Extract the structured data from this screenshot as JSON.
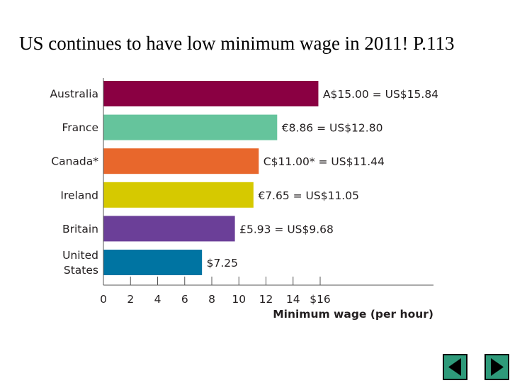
{
  "slide": {
    "title": "US continues to have low minimum wage in 2011! P.113"
  },
  "nav": {
    "prev_icon": "triangle-left-icon",
    "next_icon": "triangle-right-icon",
    "button_color": "#2e9a7a"
  },
  "chart_data": {
    "type": "bar",
    "orientation": "horizontal",
    "categories": [
      [
        "Australia"
      ],
      [
        "France"
      ],
      [
        "Canada*"
      ],
      [
        "Ireland"
      ],
      [
        "Britain"
      ],
      [
        "United",
        "States"
      ]
    ],
    "values": [
      15.84,
      12.8,
      11.44,
      11.05,
      9.68,
      7.25
    ],
    "data_labels": [
      "A$15.00 = US$15.84",
      "€8.86 = US$12.80",
      "C$11.00* = US$11.44",
      "€7.65 = US$11.05",
      "£5.93 = US$9.68",
      "$7.25"
    ],
    "colors": [
      "#8a0042",
      "#65c49c",
      "#e8672c",
      "#d6c900",
      "#6b3f98",
      "#0074a2"
    ],
    "xlabel": "Minimum wage (per hour)",
    "xlim": [
      0,
      16
    ],
    "x_ticks": [
      0,
      2,
      4,
      6,
      8,
      10,
      12,
      14,
      16
    ],
    "x_tick_labels": [
      "0",
      "2",
      "4",
      "6",
      "8",
      "10",
      "12",
      "14",
      "$16"
    ],
    "grid": false
  }
}
